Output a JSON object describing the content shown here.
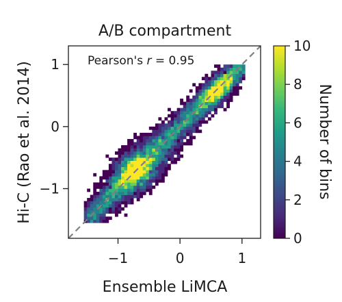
{
  "chart_data": {
    "type": "heatmap",
    "title": "A/B compartment",
    "xlabel": "Ensemble LiMCA",
    "ylabel": "Hi-C (Rao et al. 2014)",
    "xlim": [
      -1.8,
      1.3
    ],
    "ylim": [
      -1.8,
      1.3
    ],
    "xticks": [
      -1,
      0,
      1
    ],
    "yticks": [
      -1,
      0,
      1
    ],
    "xtick_labels": [
      "−1",
      "0",
      "1"
    ],
    "ytick_labels": [
      "−1",
      "0",
      "1"
    ],
    "reference_line": {
      "style": "dashed",
      "color": "#808080",
      "from": [
        -1.8,
        -1.8
      ],
      "to": [
        1.3,
        1.3
      ]
    },
    "annotation": {
      "prefix": "Pearson's ",
      "var": "r",
      "suffix": " = 0.95"
    },
    "pearson_r": 0.95,
    "colorbar": {
      "label": "Number of bins",
      "min": 0,
      "max": 10,
      "ticks": [
        0,
        2,
        4,
        6,
        8,
        10
      ],
      "tick_labels": [
        "0",
        "2",
        "4",
        "6",
        "8",
        "10"
      ],
      "colormap": "viridis"
    },
    "density_model": {
      "x_range": [
        -1.5,
        1.0
      ],
      "y_range": [
        -1.5,
        0.9
      ],
      "correlation": 0.95,
      "peak_locations": [
        [
          -0.8,
          -0.7
        ],
        [
          0.55,
          0.55
        ]
      ],
      "bins_per_unit": 20
    }
  },
  "colors": {
    "viridis": [
      "#440154",
      "#482878",
      "#3e4989",
      "#31688e",
      "#26828e",
      "#1f9e89",
      "#35b779",
      "#6ece58",
      "#b5de2b",
      "#fde725"
    ]
  }
}
